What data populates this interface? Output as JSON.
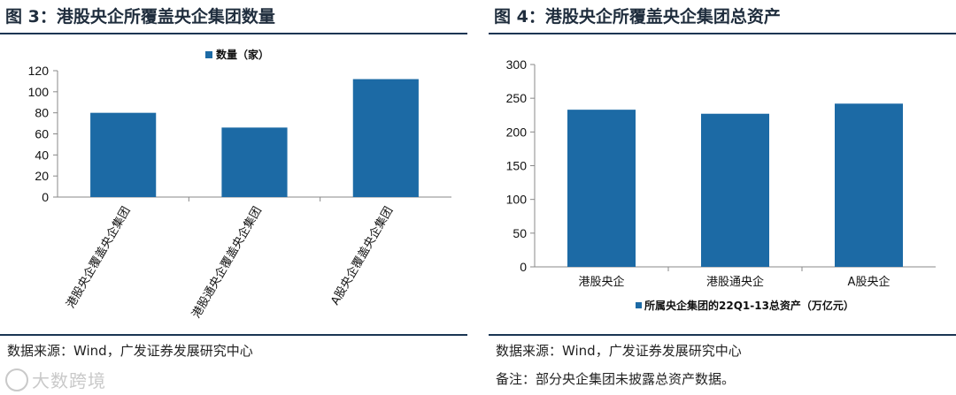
{
  "left_panel": {
    "title": "图 3：港股央企所覆盖央企集团数量",
    "source": "数据来源：Wind，广发证券发展研究中心"
  },
  "right_panel": {
    "title": "图 4：港股央企所覆盖央企集团总资产",
    "source": "数据来源：Wind，广发证券发展研究中心",
    "note": "备注：部分央企集团未披露总资产数据。"
  },
  "watermark": "大数跨境",
  "colors": {
    "bar": "#1c6aa5",
    "rule": "#1a3553",
    "axis": "#888888"
  },
  "chart_data": [
    {
      "type": "bar",
      "title": "",
      "categories": [
        "港股央企覆盖央企集团",
        "港股通央企覆盖央企集团",
        "A股央企覆盖央企集团"
      ],
      "series": [
        {
          "name": "数量（家）",
          "values": [
            80,
            66,
            112
          ]
        }
      ],
      "ylim": [
        0,
        120
      ],
      "yticks": [
        0,
        20,
        40,
        60,
        80,
        100,
        120
      ],
      "legend": "top",
      "grid": false
    },
    {
      "type": "bar",
      "title": "",
      "categories": [
        "港股央企",
        "港股通央企",
        "A股央企"
      ],
      "series": [
        {
          "name": "所属央企集团的22Q1-13总资产（万亿元）",
          "values": [
            233,
            227,
            242
          ]
        }
      ],
      "ylim": [
        0,
        300
      ],
      "yticks": [
        0,
        50,
        100,
        150,
        200,
        250,
        300
      ],
      "legend": "bottom",
      "grid": false
    }
  ]
}
